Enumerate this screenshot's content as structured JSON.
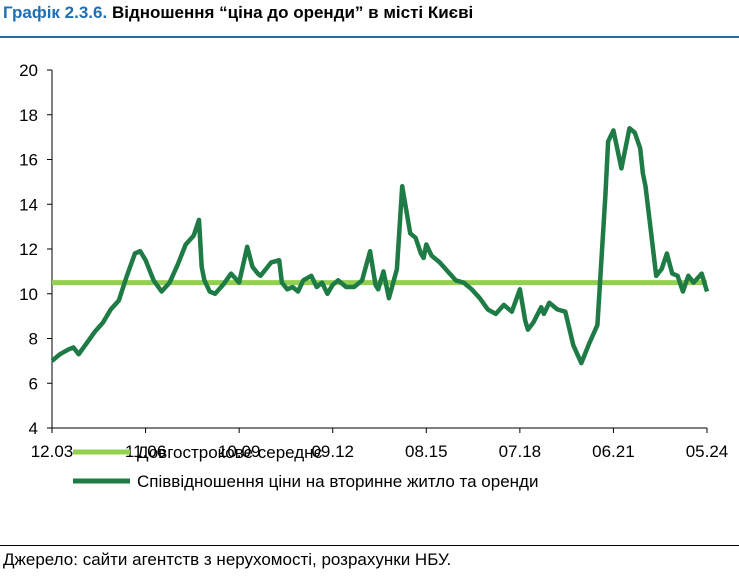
{
  "header": {
    "figure_label": "Графік 2.3.6.",
    "title": "Відношення “ціна до оренди” в місті Києві"
  },
  "footer": {
    "source": "Джерело: сайти агентств з нерухомості, розрахунки НБУ."
  },
  "chart_data": {
    "type": "line",
    "title": "Відношення “ціна до оренди” в місті Києві",
    "xlabel": "",
    "ylabel": "",
    "x_ticks": [
      "12.03",
      "11.06",
      "10.09",
      "09.12",
      "08.15",
      "07.18",
      "06.21",
      "05.24"
    ],
    "xlim": [
      "2003-12",
      "2024-05"
    ],
    "ylim": [
      4,
      20
    ],
    "y_ticks": [
      4,
      6,
      8,
      10,
      12,
      14,
      16,
      18,
      20
    ],
    "grid": false,
    "legend_position": "bottom",
    "series": [
      {
        "name": "Довгострокове середнє",
        "color": "#92d050",
        "kind": "constant",
        "x": [
          "2003-12",
          "2024-05"
        ],
        "values": [
          10.5,
          10.5
        ]
      },
      {
        "name": "Співвідношення ціни на вторинне житло та оренди",
        "color": "#1e7b45",
        "kind": "line",
        "x": [
          "2003-12",
          "2004-03",
          "2004-06",
          "2004-08",
          "2004-10",
          "2005-01",
          "2005-04",
          "2005-07",
          "2005-10",
          "2006-01",
          "2006-04",
          "2006-07",
          "2006-09",
          "2006-11",
          "2007-02",
          "2007-05",
          "2007-08",
          "2007-11",
          "2008-02",
          "2008-05",
          "2008-07",
          "2008-08",
          "2008-09",
          "2008-11",
          "2009-01",
          "2009-04",
          "2009-07",
          "2009-10",
          "2010-01",
          "2010-03",
          "2010-05",
          "2010-06",
          "2010-08",
          "2010-10",
          "2011-01",
          "2011-02",
          "2011-04",
          "2011-06",
          "2011-08",
          "2011-10",
          "2012-01",
          "2012-03",
          "2012-05",
          "2012-07",
          "2012-09",
          "2012-11",
          "2013-02",
          "2013-05",
          "2013-08",
          "2013-11",
          "2014-01",
          "2014-02",
          "2014-04",
          "2014-06",
          "2014-09",
          "2014-11",
          "2015-02",
          "2015-04",
          "2015-06",
          "2015-07",
          "2015-08",
          "2015-10",
          "2016-01",
          "2016-04",
          "2016-07",
          "2016-10",
          "2017-01",
          "2017-04",
          "2017-07",
          "2017-10",
          "2018-01",
          "2018-04",
          "2018-07",
          "2018-09",
          "2018-10",
          "2018-12",
          "2019-03",
          "2019-04",
          "2019-06",
          "2019-09",
          "2019-12",
          "2020-03",
          "2020-06",
          "2020-09",
          "2020-12",
          "2021-03",
          "2021-04",
          "2021-06",
          "2021-09",
          "2021-12",
          "2022-02",
          "2022-04",
          "2022-05",
          "2022-06",
          "2022-08",
          "2022-10",
          "2022-12",
          "2023-02",
          "2023-04",
          "2023-06",
          "2023-08",
          "2023-10",
          "2023-12",
          "2024-03",
          "2024-05"
        ],
        "values": [
          7.0,
          7.3,
          7.5,
          7.6,
          7.3,
          7.8,
          8.3,
          8.7,
          9.3,
          9.7,
          10.8,
          11.8,
          11.9,
          11.5,
          10.6,
          10.1,
          10.5,
          11.3,
          12.2,
          12.6,
          13.3,
          11.2,
          10.6,
          10.1,
          10.0,
          10.4,
          10.9,
          10.5,
          12.1,
          11.2,
          10.9,
          10.8,
          11.1,
          11.4,
          11.5,
          10.5,
          10.2,
          10.3,
          10.1,
          10.6,
          10.8,
          10.3,
          10.5,
          10.0,
          10.4,
          10.6,
          10.3,
          10.3,
          10.6,
          11.9,
          10.4,
          10.2,
          11.0,
          9.8,
          11.1,
          14.8,
          12.7,
          12.5,
          11.8,
          11.6,
          12.2,
          11.7,
          11.4,
          11.0,
          10.6,
          10.5,
          10.2,
          9.8,
          9.3,
          9.1,
          9.5,
          9.2,
          10.2,
          8.8,
          8.4,
          8.7,
          9.4,
          9.1,
          9.6,
          9.3,
          9.2,
          7.7,
          6.9,
          7.8,
          8.6,
          14.4,
          16.8,
          17.3,
          15.6,
          17.4,
          17.2,
          16.5,
          15.4,
          14.8,
          12.8,
          10.8,
          11.1,
          11.8,
          10.9,
          10.8,
          10.1,
          10.8,
          10.5,
          10.9,
          10.1
        ]
      }
    ]
  }
}
